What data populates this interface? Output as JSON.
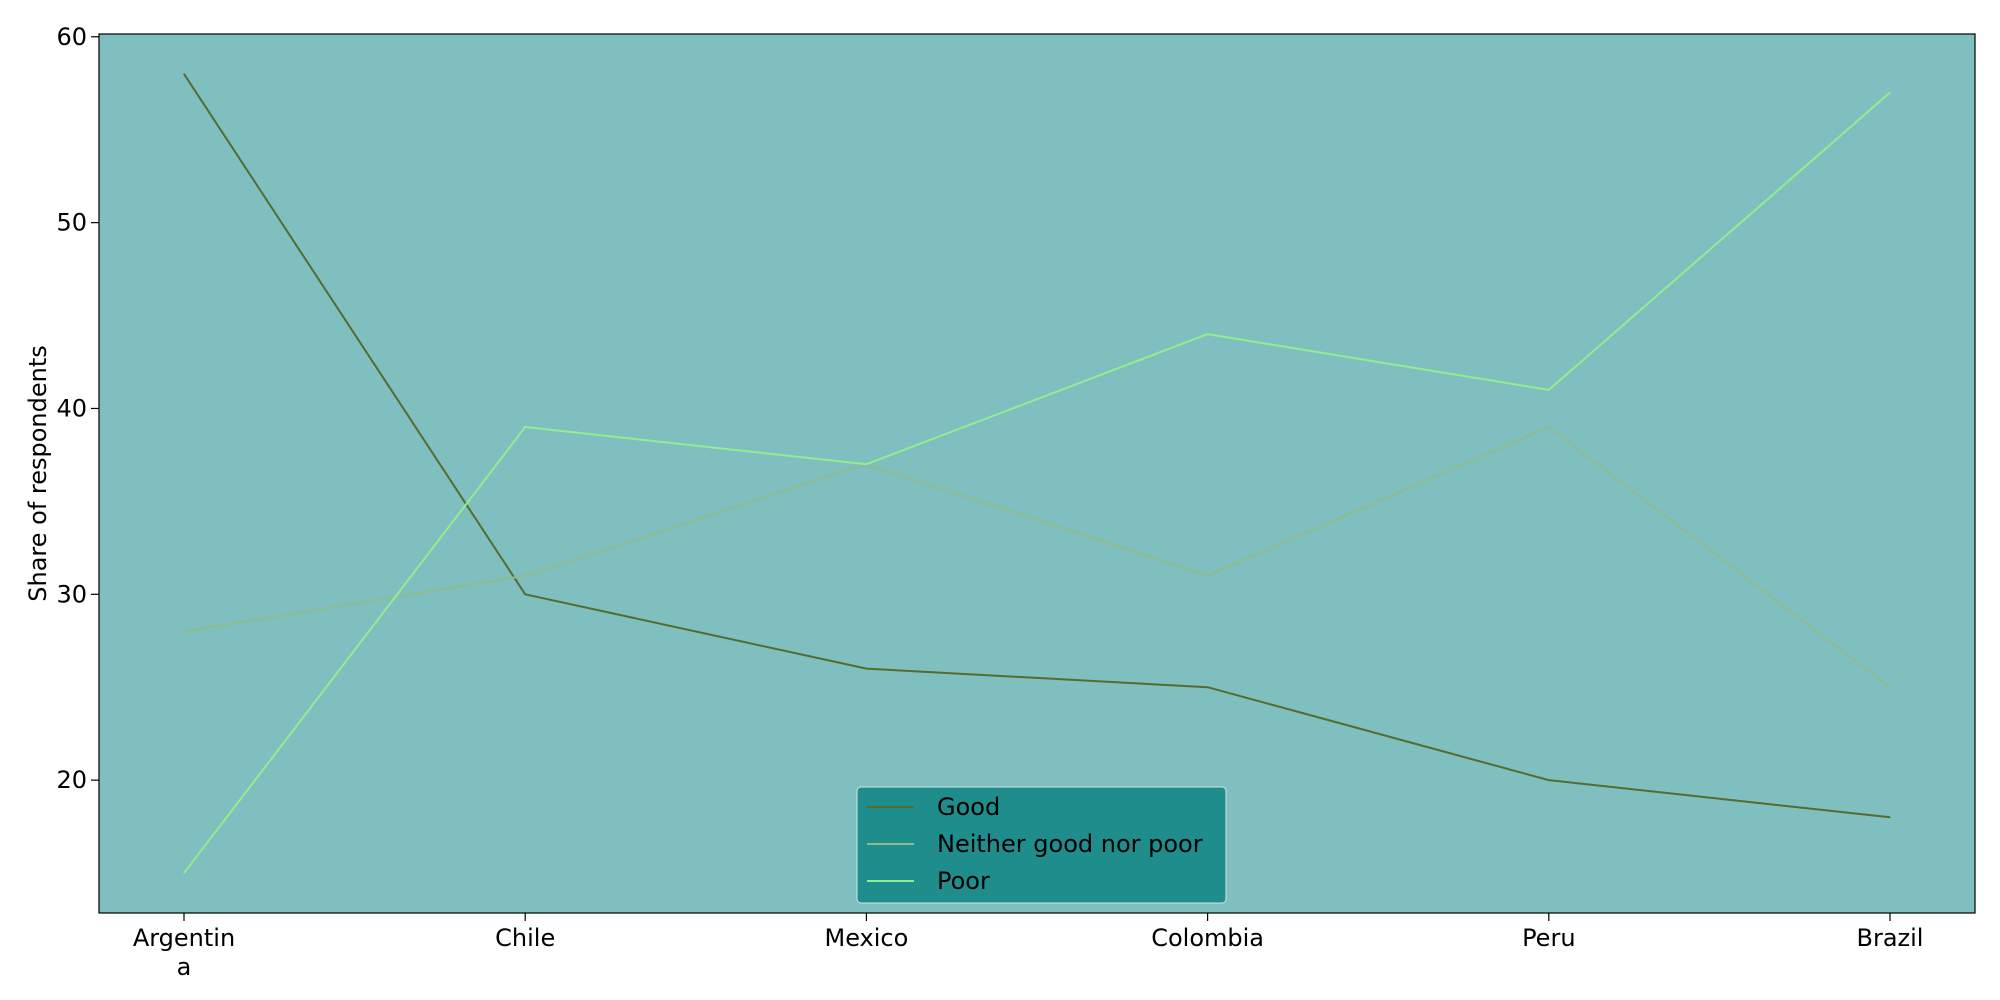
{
  "chart_data": {
    "type": "line",
    "title": "",
    "xlabel": "",
    "ylabel": "Share of respondents",
    "categories": [
      "Argentin\na",
      "Chile",
      "Mexico",
      "Colombia",
      "Peru",
      "Brazil"
    ],
    "series": [
      {
        "name": "Good",
        "values": [
          58,
          30,
          26,
          25,
          20,
          18
        ],
        "color": "#556b2f"
      },
      {
        "name": "Neither good nor poor",
        "values": [
          28,
          31,
          37,
          31,
          39,
          25
        ],
        "color": "#8fbc8f"
      },
      {
        "name": "Poor",
        "values": [
          15,
          39,
          37,
          44,
          41,
          57
        ],
        "color": "#90ee90"
      }
    ],
    "ylim": [
      12.85,
      60.15
    ],
    "yticks": [
      20,
      30,
      40,
      50,
      60
    ],
    "grid": false,
    "legend_position": "bottom-center",
    "plot_background": "#80bfbf",
    "legend_background": "#1a8a8a"
  }
}
